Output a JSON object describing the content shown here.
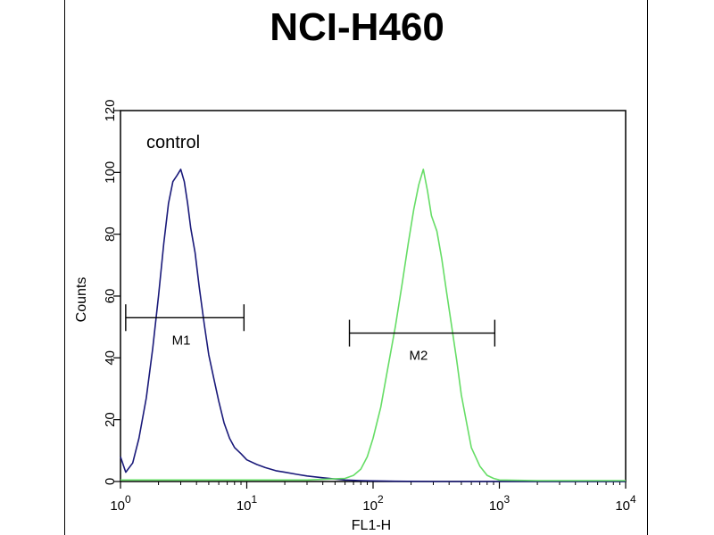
{
  "chart_data": {
    "type": "histogram",
    "title": "NCI-H460",
    "xlabel": "FL1-H",
    "ylabel": "Counts",
    "xscale": "log",
    "xlim": [
      1,
      10000
    ],
    "ylim": [
      0,
      120
    ],
    "yticks": [
      "0",
      "20",
      "40",
      "60",
      "80",
      "100",
      "120"
    ],
    "xticks": [
      {
        "base": "10",
        "exp": "0",
        "value": 1
      },
      {
        "base": "10",
        "exp": "1",
        "value": 10
      },
      {
        "base": "10",
        "exp": "2",
        "value": 100
      },
      {
        "base": "10",
        "exp": "3",
        "value": 1000
      },
      {
        "base": "10",
        "exp": "4",
        "value": 10000
      }
    ],
    "annotations": {
      "control_label": "control",
      "markers": [
        {
          "label": "M1",
          "x_start": 1.1,
          "x_end": 9.5,
          "y": 53
        },
        {
          "label": "M2",
          "x_start": 65,
          "x_end": 920,
          "y": 48
        }
      ]
    },
    "series": [
      {
        "color": "#1a1a7a",
        "x": [
          1,
          1.1,
          1.25,
          1.4,
          1.6,
          1.8,
          2.0,
          2.2,
          2.4,
          2.6,
          2.8,
          3.0,
          3.2,
          3.4,
          3.6,
          3.9,
          4.2,
          4.6,
          5.0,
          5.5,
          6.0,
          6.6,
          7.3,
          8.0,
          9.0,
          10,
          12,
          14,
          17,
          20,
          25,
          30,
          40,
          50,
          60,
          80,
          100,
          150,
          300,
          1000,
          10000
        ],
        "y": [
          8,
          3,
          6,
          14,
          27,
          43,
          60,
          77,
          90,
          97,
          99,
          101,
          97,
          90,
          82,
          74,
          63,
          51,
          41,
          33,
          26,
          19,
          14,
          11,
          9,
          7,
          5.5,
          4.5,
          3.5,
          3,
          2.3,
          1.8,
          1.2,
          0.8,
          0.5,
          0.3,
          0.2,
          0.1,
          0,
          0,
          0
        ]
      },
      {
        "color": "#66dd66",
        "x": [
          1,
          10,
          30,
          60,
          70,
          80,
          90,
          100,
          115,
          130,
          150,
          170,
          190,
          210,
          230,
          250,
          270,
          290,
          320,
          350,
          380,
          420,
          460,
          500,
          550,
          600,
          700,
          800,
          900,
          1000,
          2000,
          10000
        ],
        "y": [
          0.5,
          0.5,
          0.5,
          1,
          2,
          4,
          8,
          14,
          24,
          36,
          50,
          64,
          77,
          88,
          96,
          101,
          94,
          86,
          81,
          72,
          62,
          50,
          39,
          28,
          19,
          11,
          5,
          2,
          1,
          0.5,
          0.3,
          0.3
        ]
      }
    ]
  }
}
